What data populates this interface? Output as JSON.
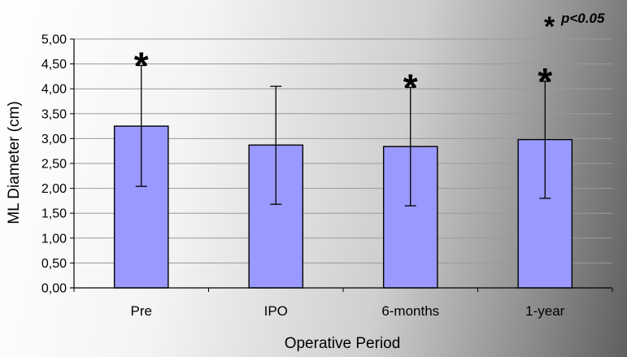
{
  "chart_data": {
    "type": "bar",
    "categories": [
      "Pre",
      "IPO",
      "6-months",
      "1-year"
    ],
    "values": [
      3.25,
      2.87,
      2.84,
      2.98
    ],
    "error_upper": [
      4.47,
      4.05,
      4.03,
      4.15
    ],
    "error_lower": [
      2.04,
      1.68,
      1.65,
      1.8
    ],
    "significant": [
      true,
      false,
      true,
      true
    ],
    "significance_marker": "*",
    "ylabel": "ML Diameter (cm)",
    "xlabel": "Operative Period",
    "ylim": [
      0,
      5
    ],
    "ytick_step": 0.5,
    "ytick_labels": [
      "0,00",
      "0,50",
      "1,00",
      "1,50",
      "2,00",
      "2,50",
      "3,00",
      "3,50",
      "4,00",
      "4,50",
      "5,00"
    ],
    "grid": true,
    "legend_note": {
      "marker": "*",
      "text": "p<0.05",
      "position": "top-right"
    },
    "bar_color": "#9999ff",
    "bar_edge_color": "#000000",
    "grid_color": "#9a9a9a"
  }
}
